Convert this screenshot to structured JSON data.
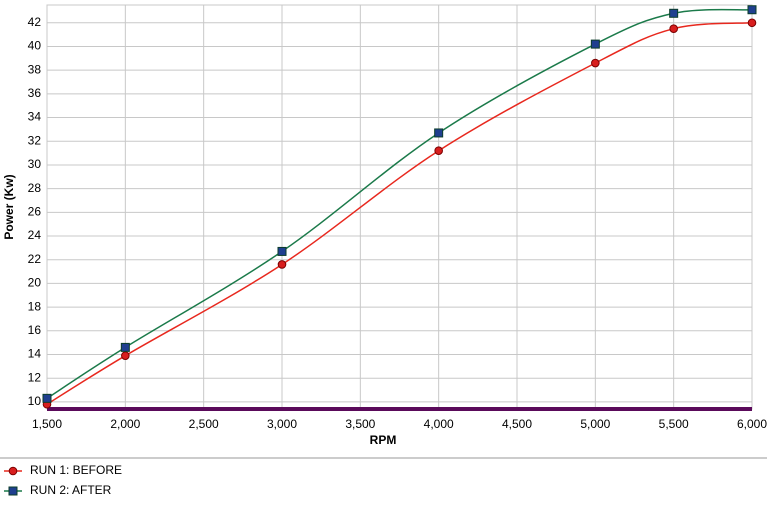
{
  "chart_data": {
    "type": "line",
    "x_label": "RPM",
    "y_label": "Power (Kw)",
    "x": [
      1500,
      2000,
      3000,
      4000,
      5000,
      5500,
      6000
    ],
    "series": [
      {
        "name": "RUN 1: BEFORE",
        "color": "#e8281e",
        "marker": "circle",
        "marker_color": "#d81e1e",
        "values": [
          9.8,
          13.9,
          21.6,
          31.2,
          38.6,
          41.5,
          42.0
        ]
      },
      {
        "name": "RUN 2: AFTER",
        "color": "#1b7a4a",
        "marker": "square",
        "marker_color": "#1f3f8f",
        "values": [
          10.3,
          14.6,
          22.7,
          32.7,
          40.2,
          42.8,
          43.1
        ]
      }
    ],
    "xlim": [
      1500,
      6000
    ],
    "xticks": [
      {
        "value": 1500,
        "label": "1,500"
      },
      {
        "value": 2000,
        "label": "2,000"
      },
      {
        "value": 2500,
        "label": "2,500"
      },
      {
        "value": 3000,
        "label": "3,000"
      },
      {
        "value": 3500,
        "label": "3,500"
      },
      {
        "value": 4000,
        "label": "4,000"
      },
      {
        "value": 4500,
        "label": "4,500"
      },
      {
        "value": 5000,
        "label": "5,000"
      },
      {
        "value": 5500,
        "label": "5,500"
      },
      {
        "value": 6000,
        "label": "6,000"
      }
    ],
    "ylim": [
      9.4,
      43.5
    ],
    "yticks": [
      10,
      12,
      14,
      16,
      18,
      20,
      22,
      24,
      26,
      28,
      30,
      32,
      34,
      36,
      38,
      40,
      42
    ],
    "grid": true
  }
}
